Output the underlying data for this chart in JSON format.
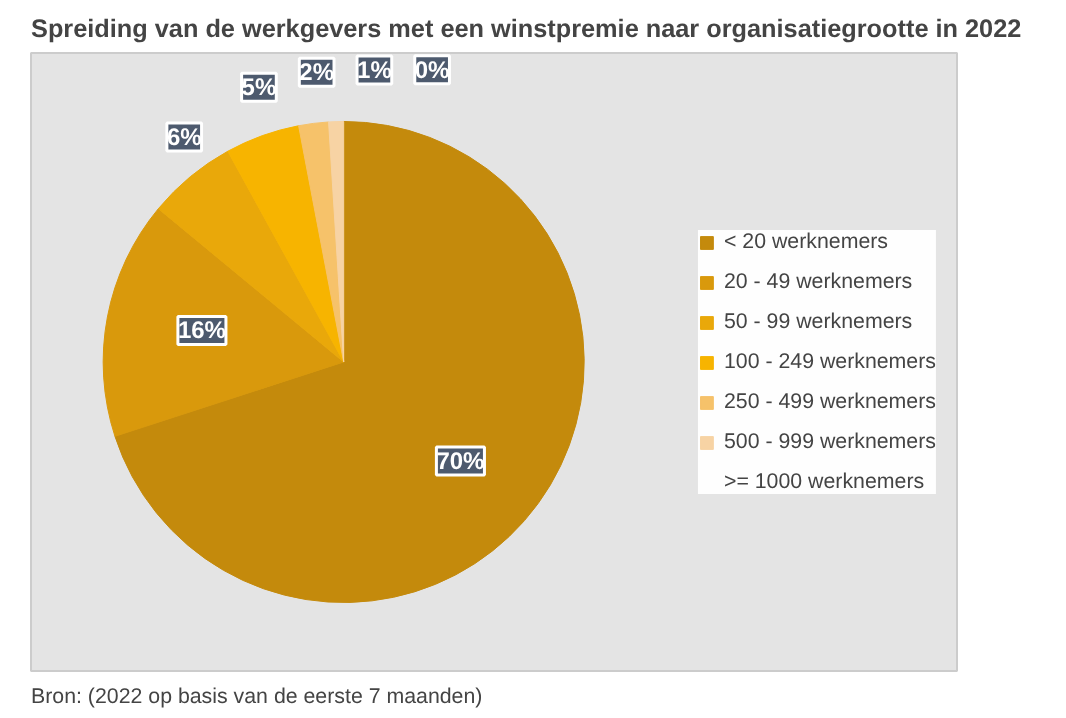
{
  "chart_data": {
    "type": "pie",
    "title": "Spreiding van de werkgevers met een winstpremie naar organisatiegrootte in 2022",
    "categories": [
      "< 20 werknemers",
      "20 - 49 werknemers",
      "50 - 99 werknemers",
      "100 - 249 werknemers",
      "250 - 499 werknemers",
      "500 - 999 werknemers",
      ">= 1000 werknemers"
    ],
    "values": [
      70,
      16,
      6,
      5,
      2,
      1,
      0
    ],
    "colors": [
      "#c48a0c",
      "#d9990c",
      "#e9a80a",
      "#f7b400",
      "#f6c26a",
      "#f7d3a4",
      "#f9e2c8"
    ],
    "value_labels": [
      "70%",
      "16%",
      "6%",
      "5%",
      "2%",
      "1%",
      "0%"
    ],
    "legend": "right",
    "annotations": [
      "Bron: (2022 op basis van de eerste 7 maanden)"
    ]
  }
}
